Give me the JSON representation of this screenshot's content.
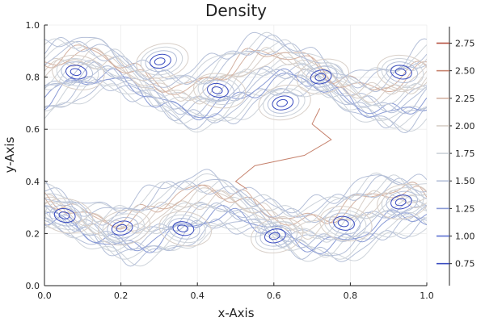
{
  "chart_data": {
    "type": "contour",
    "title": "Density",
    "xlabel": "x-Axis",
    "ylabel": "y-Axis",
    "xlim": [
      0.0,
      1.0
    ],
    "ylim": [
      0.0,
      1.0
    ],
    "xticks": [
      "0.0",
      "0.2",
      "0.4",
      "0.6",
      "0.8",
      "1.0"
    ],
    "yticks": [
      "0.0",
      "0.2",
      "0.4",
      "0.6",
      "0.8",
      "1.0"
    ],
    "grid": true,
    "colorbar": {
      "levels": [
        0.75,
        1.0,
        1.25,
        1.5,
        1.75,
        2.0,
        2.25,
        2.5,
        2.75
      ],
      "labels": [
        "0.75",
        "1.00",
        "1.25",
        "1.50",
        "1.75",
        "2.00",
        "2.25",
        "2.50",
        "2.75"
      ],
      "range": [
        0.55,
        2.9
      ],
      "colors": [
        "#3a4cc0",
        "#5a6fd2",
        "#8a9bd6",
        "#b4bfd8",
        "#cdd3da",
        "#d8cfc8",
        "#d4b2a2",
        "#c6826d",
        "#b5513f"
      ]
    },
    "description": "Kelvin-Helmholtz instability density contours: two shear layers near y=0.25 and y=0.78 rolled into vortices",
    "bands": [
      {
        "name": "upper-layer",
        "y_center": 0.78,
        "amplitude": 0.07,
        "half_width": 0.1,
        "phase": 0.0
      },
      {
        "name": "lower-layer",
        "y_center": 0.26,
        "amplitude": 0.06,
        "half_width": 0.1,
        "phase": 2.2
      }
    ],
    "vortices": [
      {
        "x": 0.08,
        "y": 0.82
      },
      {
        "x": 0.3,
        "y": 0.86
      },
      {
        "x": 0.45,
        "y": 0.75
      },
      {
        "x": 0.62,
        "y": 0.7
      },
      {
        "x": 0.93,
        "y": 0.82
      },
      {
        "x": 0.72,
        "y": 0.8
      },
      {
        "x": 0.05,
        "y": 0.27
      },
      {
        "x": 0.2,
        "y": 0.22
      },
      {
        "x": 0.36,
        "y": 0.22
      },
      {
        "x": 0.6,
        "y": 0.19
      },
      {
        "x": 0.78,
        "y": 0.24
      },
      {
        "x": 0.93,
        "y": 0.32
      }
    ],
    "interface_contour": [
      [
        0.53,
        0.37
      ],
      [
        0.5,
        0.4
      ],
      [
        0.55,
        0.46
      ],
      [
        0.68,
        0.5
      ],
      [
        0.75,
        0.56
      ],
      [
        0.7,
        0.62
      ],
      [
        0.72,
        0.68
      ]
    ]
  }
}
